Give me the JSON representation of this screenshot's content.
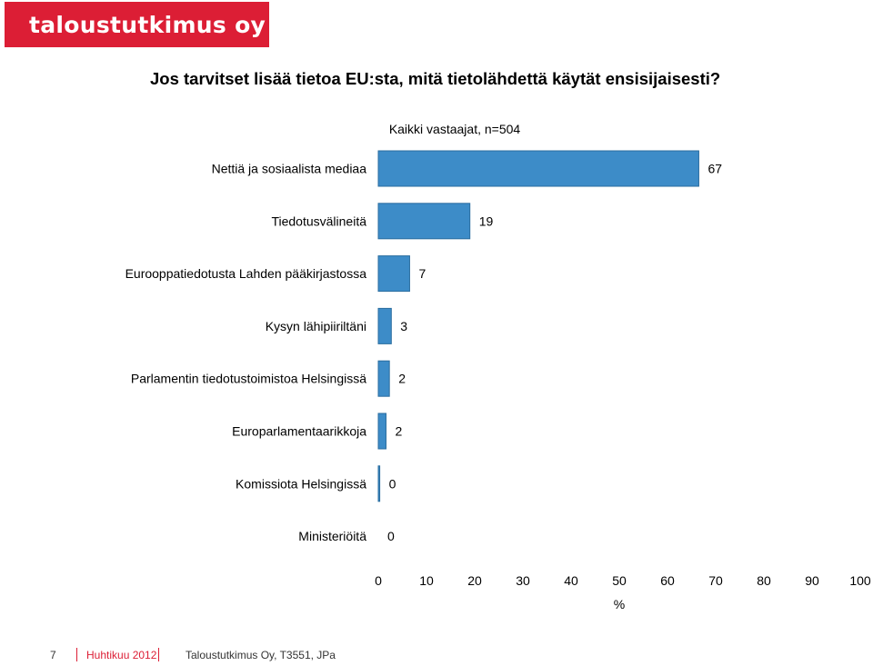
{
  "brand": {
    "logo_text": "taloustutkimus oy",
    "color": "#dc1e35"
  },
  "chart_data": {
    "type": "bar",
    "orientation": "horizontal",
    "title": "Jos tarvitset lisää tietoa EU:sta, mitä tietolähdettä käytät ensisijaisesti?",
    "subtitle": "Kaikki vastaajat, n=504",
    "categories": [
      "Nettiä ja sosiaalista mediaa",
      "Tiedotusvälineitä",
      "Eurooppatiedotusta Lahden pääkirjastossa",
      "Kysyn lähipiiriltäni",
      "Parlamentin tiedotustoimistoa Helsingissä",
      "Europarlamentaarikkoja",
      "Komissiota Helsingissä",
      "Ministeriöitä"
    ],
    "values": [
      66.5,
      19,
      6.5,
      2.7,
      2.3,
      1.6,
      0.3,
      0
    ],
    "data_labels": [
      "67",
      "19",
      "7",
      "3",
      "2",
      "2",
      "0",
      "0"
    ],
    "xlabel": "%",
    "xlim": [
      0,
      100
    ],
    "x_ticks": [
      "0",
      "10",
      "20",
      "30",
      "40",
      "50",
      "60",
      "70",
      "80",
      "90",
      "100"
    ],
    "bar_color": "#3d8cc8",
    "bar_edge_color": "#2a6d9f",
    "grid": false
  },
  "footer": {
    "page": "7",
    "date": "Huhtikuu 2012",
    "source": "Taloustutkimus Oy, T3551, JPa"
  }
}
